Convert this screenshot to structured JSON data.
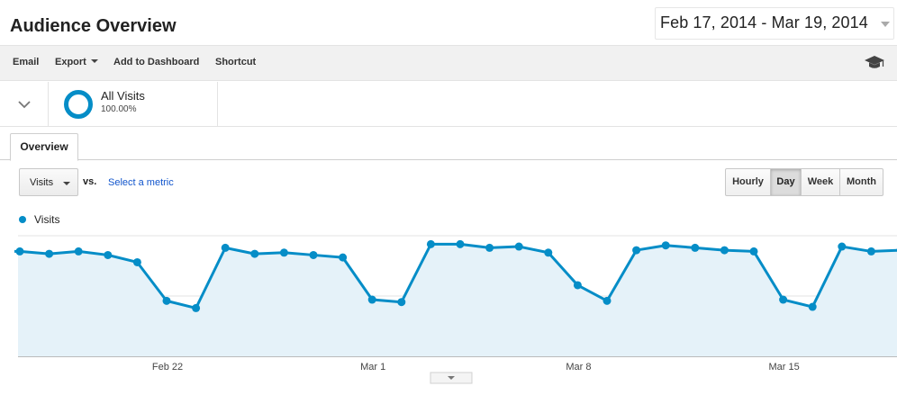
{
  "header": {
    "title": "Audience Overview",
    "date_range": "Feb 17, 2014 - Mar 19, 2014"
  },
  "toolbar": {
    "email": "Email",
    "export": "Export",
    "add_to_dashboard": "Add to Dashboard",
    "shortcut": "Shortcut",
    "help_icon": "graduation-cap-icon"
  },
  "segment": {
    "name": "All Visits",
    "percent": "100.00%",
    "toggle_icon": "chevron-down-icon"
  },
  "tabs": [
    {
      "label": "Overview",
      "active": true
    }
  ],
  "controls": {
    "metric": "Visits",
    "vs": "vs.",
    "select_metric": "Select a metric",
    "granularity": [
      {
        "label": "Hourly",
        "active": false
      },
      {
        "label": "Day",
        "active": true
      },
      {
        "label": "Week",
        "active": false
      },
      {
        "label": "Month",
        "active": false
      }
    ]
  },
  "colors": {
    "accent": "#058dc7",
    "area_fill": "#e5f2f9",
    "link": "#1155cc",
    "gridline": "#e3e3e3"
  },
  "chart_data": {
    "type": "line",
    "series": [
      {
        "name": "Visits",
        "x": [
          "2014-02-17",
          "2014-02-18",
          "2014-02-19",
          "2014-02-20",
          "2014-02-21",
          "2014-02-22",
          "2014-02-23",
          "2014-02-24",
          "2014-02-25",
          "2014-02-26",
          "2014-02-27",
          "2014-02-28",
          "2014-03-01",
          "2014-03-02",
          "2014-03-03",
          "2014-03-04",
          "2014-03-05",
          "2014-03-06",
          "2014-03-07",
          "2014-03-08",
          "2014-03-09",
          "2014-03-10",
          "2014-03-11",
          "2014-03-12",
          "2014-03-13",
          "2014-03-14",
          "2014-03-15",
          "2014-03-16",
          "2014-03-17",
          "2014-03-18",
          "2014-03-19"
        ],
        "values": [
          87,
          85,
          87,
          84,
          78,
          46,
          40,
          90,
          85,
          86,
          84,
          82,
          47,
          45,
          93,
          93,
          90,
          91,
          86,
          59,
          46,
          88,
          92,
          90,
          88,
          87,
          47,
          41,
          91,
          87,
          88
        ]
      }
    ],
    "x_tick_labels": [
      "Feb 22",
      "Mar 1",
      "Mar 8",
      "Mar 15"
    ],
    "ylim": [
      0,
      100
    ],
    "grid": true,
    "legend": "top-left",
    "fill_under_line": true
  }
}
